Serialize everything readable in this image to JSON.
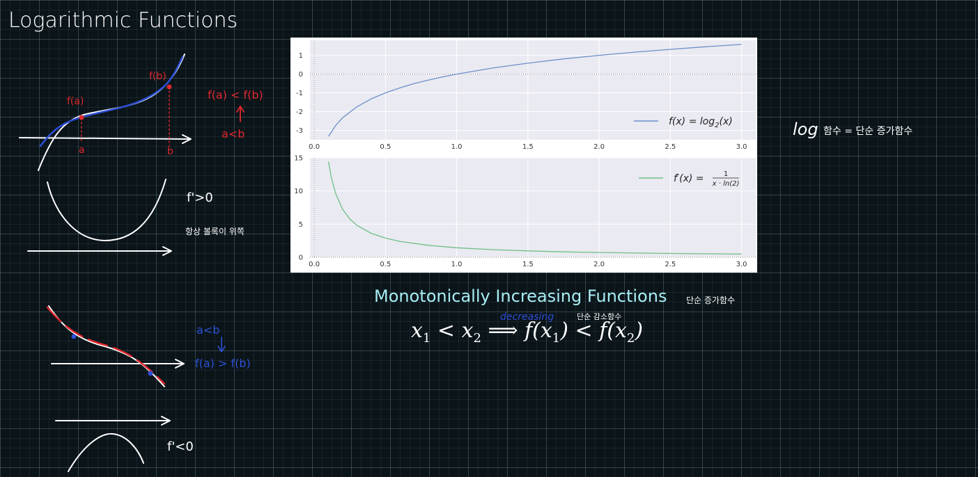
{
  "page": {
    "title": "Logarithmic Functions"
  },
  "chart_data": [
    {
      "type": "line",
      "series": [
        {
          "name": "f(x) = log2(x)",
          "x": [
            0.1,
            0.15,
            0.2,
            0.3,
            0.4,
            0.5,
            0.6,
            0.7,
            0.8,
            0.9,
            1.0,
            1.25,
            1.5,
            1.75,
            2.0,
            2.25,
            2.5,
            2.75,
            3.0
          ],
          "y": [
            -3.32,
            -2.74,
            -2.32,
            -1.74,
            -1.32,
            -1.0,
            -0.74,
            -0.51,
            -0.32,
            -0.15,
            0.0,
            0.32,
            0.58,
            0.81,
            1.0,
            1.17,
            1.32,
            1.46,
            1.58
          ],
          "color": "#6b8fc8"
        }
      ],
      "xlim": [
        -0.03,
        3.1
      ],
      "ylim": [
        -3.5,
        1.8
      ],
      "xticks": [
        "0.0",
        "0.5",
        "1.0",
        "1.5",
        "2.0",
        "2.5",
        "3.0"
      ],
      "yticks": [
        "1",
        "0",
        "-1",
        "-2",
        "-3"
      ],
      "legend_label": "f(x) = log",
      "legend_sub": "2",
      "legend_tail": "(x)",
      "legend_position": "right",
      "grid": true
    },
    {
      "type": "line",
      "series": [
        {
          "name": "f'(x) = 1/(x·ln(2))",
          "x": [
            0.1,
            0.12,
            0.15,
            0.2,
            0.25,
            0.3,
            0.4,
            0.5,
            0.6,
            0.8,
            1.0,
            1.25,
            1.5,
            1.75,
            2.0,
            2.5,
            3.0
          ],
          "y": [
            14.43,
            12.02,
            9.62,
            7.21,
            5.77,
            4.81,
            3.61,
            2.89,
            2.4,
            1.8,
            1.44,
            1.15,
            0.96,
            0.82,
            0.72,
            0.58,
            0.48
          ],
          "color": "#6fbf86"
        }
      ],
      "xlim": [
        -0.03,
        3.1
      ],
      "ylim": [
        0,
        15
      ],
      "xticks": [
        "0.0",
        "0.5",
        "1.0",
        "1.5",
        "2.0",
        "2.5",
        "3.0"
      ],
      "yticks": [
        "15",
        "10",
        "5",
        "0"
      ],
      "legend_label": "f′(x) =",
      "legend_num": "1",
      "legend_den": "x · ln(2)",
      "legend_position": "top-right",
      "grid": true
    }
  ],
  "heading": "Monotonically Increasing Functions",
  "formula": {
    "x1": "x",
    "lt1": " < ",
    "x2": "x",
    "arrow": " ⟹ ",
    "f1": "f(x",
    "close1": ")",
    "lt2": " < ",
    "f2": "f(x",
    "close2": ")",
    "sub1": "1",
    "sub2": "2"
  },
  "handwriting": {
    "fa": "f(a)",
    "fb": "f(b)",
    "fa_lt_fb": "f(a) < f(b)",
    "a_lt_b": "a<b",
    "a": "a",
    "b": "b",
    "fprime_gt_0": "f'>0",
    "always_convex": "항상 볼록이 위쪽",
    "a_lt_b_blue": "a<b",
    "fa_gt_fb": "f(a) > f(b)",
    "fprime_lt_0": "f'<0",
    "log_label": "log",
    "log_desc": "함수 = 단순 증가함수",
    "mono_note": "단순 증가함수",
    "decreasing": "decreasing",
    "dec_note": "단순 감소함수"
  },
  "colors": {
    "background": "#0a1419",
    "heading": "#a8eef5",
    "red_ink": "#e0282d",
    "blue_ink": "#2e4fd6",
    "white_ink": "#ffffff",
    "plot_bg": "#eaeaf2"
  }
}
